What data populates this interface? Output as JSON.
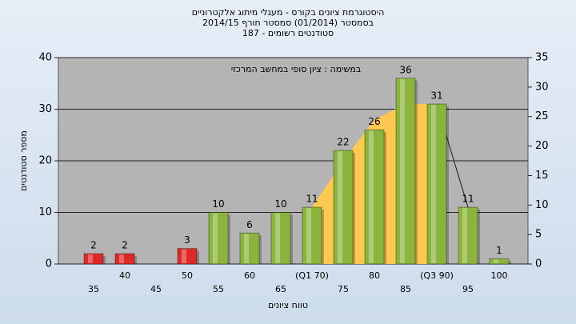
{
  "chart_data": {
    "type": "bar",
    "title": [
      "היסטוגרמת ציונים בקורס - מעגלי מיתוג אלקטרוניים",
      "בסמסטר  (01/2014)  סמסטר חורף 2014/15",
      "סטודנטים רשומים - 187"
    ],
    "annotation": "במשימה : ציון סופי במחשב המרכזי",
    "y_label": "מספר סטודנטים",
    "x_label": "טווח ציונים",
    "categories": [
      "35",
      "40",
      "45",
      "50",
      "55",
      "60",
      "65",
      "(Q1 70)",
      "75",
      "80",
      "85",
      "(Q3 90)",
      "95",
      "100"
    ],
    "values": [
      2,
      2,
      null,
      3,
      10,
      6,
      10,
      11,
      22,
      26,
      36,
      31,
      11,
      1
    ],
    "bar_colors": [
      "#e02828",
      "#e02828",
      "#e02828",
      "#e02828",
      "#8ab43c",
      "#8ab43c",
      "#8ab43c",
      "#8ab43c",
      "#8ab43c",
      "#8ab43c",
      "#8ab43c",
      "#8ab43c",
      "#8ab43c",
      "#8ab43c"
    ],
    "area": {
      "color": "#ffc850",
      "values": [
        null,
        null,
        null,
        null,
        null,
        null,
        null,
        11,
        20,
        28,
        31,
        31,
        null,
        null
      ]
    },
    "line": {
      "color": "#333333",
      "values": [
        null,
        null,
        null,
        null,
        null,
        null,
        null,
        null,
        null,
        null,
        null,
        31,
        11,
        null
      ]
    },
    "ylim": [
      0,
      40
    ],
    "yticks": [
      0,
      10,
      20,
      30,
      40
    ],
    "y2lim": [
      0,
      35
    ],
    "y2ticks": [
      0,
      5,
      10,
      15,
      20,
      25,
      30,
      35
    ],
    "grid": true
  }
}
